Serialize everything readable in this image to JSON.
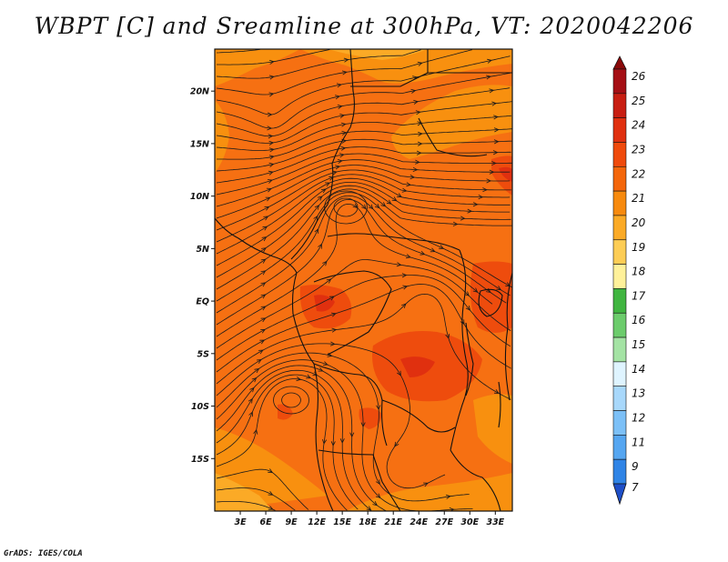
{
  "title": "WBPT [C] and Sreamline at 300hPa, VT: 2020042206",
  "credit": "GrADS: IGES/COLA",
  "map": {
    "variable": "WBPT [C]",
    "level": "300hPa",
    "valid_time": "2020042206",
    "lon_range": [
      0,
      35
    ],
    "lat_range": [
      -20,
      24
    ],
    "lat_ticks": [
      {
        "lat": 20,
        "label": "20N"
      },
      {
        "lat": 15,
        "label": "15N"
      },
      {
        "lat": 10,
        "label": "10N"
      },
      {
        "lat": 5,
        "label": "5N"
      },
      {
        "lat": 0,
        "label": "EQ"
      },
      {
        "lat": -5,
        "label": "5S"
      },
      {
        "lat": -10,
        "label": "10S"
      },
      {
        "lat": -15,
        "label": "15S"
      }
    ],
    "lon_ticks": [
      {
        "lon": 3,
        "label": "3E"
      },
      {
        "lon": 6,
        "label": "6E"
      },
      {
        "lon": 9,
        "label": "9E"
      },
      {
        "lon": 12,
        "label": "12E"
      },
      {
        "lon": 15,
        "label": "15E"
      },
      {
        "lon": 18,
        "label": "18E"
      },
      {
        "lon": 21,
        "label": "21E"
      },
      {
        "lon": 24,
        "label": "24E"
      },
      {
        "lon": 27,
        "label": "27E"
      },
      {
        "lon": 30,
        "label": "30E"
      },
      {
        "lon": 33,
        "label": "33E"
      }
    ]
  },
  "colorbar": {
    "labels": [
      "26",
      "25",
      "24",
      "23",
      "22",
      "21",
      "20",
      "19",
      "18",
      "17",
      "16",
      "15",
      "14",
      "13",
      "12",
      "11",
      "9",
      "7"
    ],
    "colors": [
      "#a50f15",
      "#c81e12",
      "#e0300f",
      "#ef4a0c",
      "#f4660b",
      "#f78a0e",
      "#fbaa26",
      "#fdcd55",
      "#fff19a",
      "#40b540",
      "#6ccc6c",
      "#a4e3a4",
      "#dff4ff",
      "#a8d8fb",
      "#7cc0f7",
      "#55a6f1",
      "#2f84e6",
      "#1e5fd0"
    ],
    "top_arrow_color": "#8b0a0a",
    "bottom_arrow_color": "#1e4fc8"
  }
}
